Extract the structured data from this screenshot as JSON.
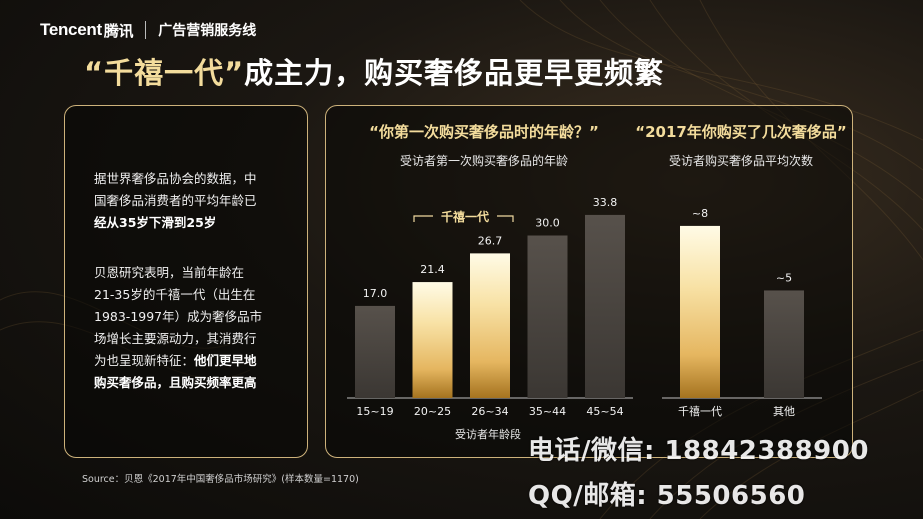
{
  "header": {
    "brand": "Tencent",
    "brand_cn": "腾讯",
    "line_name": "广告营销服务线"
  },
  "title": {
    "open_quote": "“",
    "term": "千禧一代",
    "close_quote": "”",
    "rest": "成主力，购买奢侈品更早更频繁"
  },
  "left_panel": {
    "p1": [
      "据世界奢侈品协会的数据，中",
      "国奢侈品消费者的平均年龄已"
    ],
    "p1_bold": "经从35岁下滑到25岁",
    "p2": [
      "贝恩研究表明，当前年龄在",
      "21-35岁的千禧一代（出生在",
      "1983-1997年）成为奢侈品市",
      "场增长主要源动力，其消费行",
      "为也呈现新特征："
    ],
    "p2_bold_inline": "他们更早地",
    "p2_bold_last": "购买奢侈品，且购买频率更高"
  },
  "source": "Source：贝恩《2017年中国奢侈品市场研究》(样本数量=1170)",
  "colors": {
    "gold_light": "#fff4c8",
    "gold_mid": "#f3d07a",
    "gold_dark": "#a5731f",
    "grey_bar": "#4b4642",
    "border": "#cdb27b"
  },
  "chart_data": [
    {
      "type": "bar",
      "title": "“你第一次购买奢侈品时的年龄？”",
      "subtitle": "受访者第一次购买奢侈品的年龄",
      "xlabel": "受访者年龄段",
      "categories": [
        "15~19",
        "20~25",
        "26~34",
        "35~44",
        "45~54"
      ],
      "values": [
        17.0,
        21.4,
        26.7,
        30.0,
        33.8
      ],
      "value_labels": [
        "17.0",
        "21.4",
        "26.7",
        "30.0",
        "33.8"
      ],
      "highlight": [
        false,
        true,
        true,
        false,
        false
      ],
      "bracket_label": "千禧一代",
      "ylim": [
        0,
        36
      ]
    },
    {
      "type": "bar",
      "title": "“2017年你购买了几次奢侈品”",
      "subtitle": "受访者购买奢侈品平均次数",
      "categories": [
        "千禧一代",
        "其他"
      ],
      "values": [
        8,
        5
      ],
      "value_labels": [
        "~8",
        "~5"
      ],
      "highlight": [
        true,
        false
      ],
      "ylim": [
        0,
        8.6
      ]
    }
  ],
  "watermark": {
    "line1": "电话/微信: 18842388900",
    "line2": "QQ/邮箱: 55506560"
  }
}
